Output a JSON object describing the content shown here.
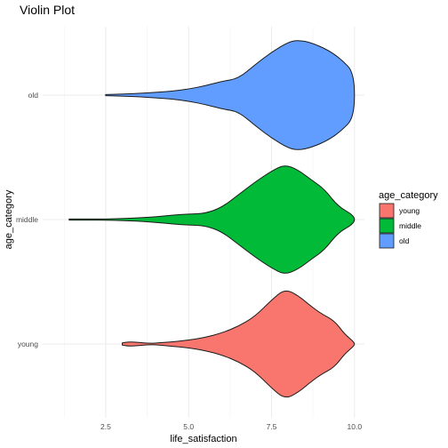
{
  "chart_data": {
    "type": "violin",
    "title": "Violin Plot",
    "xlabel": "life_satisfaction",
    "ylabel": "age_category",
    "xlim": [
      0.6,
      10.3
    ],
    "x_ticks": [
      2.5,
      5.0,
      7.5,
      10.0
    ],
    "x_tick_labels": [
      "2.5",
      "5.0",
      "7.5",
      "10.0"
    ],
    "categories": [
      "young",
      "middle",
      "old"
    ],
    "legend": {
      "title": "age_category",
      "placement": "right",
      "entries": [
        "young",
        "middle",
        "old"
      ]
    },
    "grid": true,
    "series": [
      {
        "name": "young",
        "color": "#F8766D",
        "range": [
          3.0,
          10.0
        ],
        "density_profile": [
          [
            3.0,
            0.02
          ],
          [
            3.2,
            0.04
          ],
          [
            3.5,
            0.03
          ],
          [
            3.8,
            0.01
          ],
          [
            4.1,
            0.02
          ],
          [
            4.5,
            0.04
          ],
          [
            5.0,
            0.07
          ],
          [
            5.5,
            0.12
          ],
          [
            6.0,
            0.2
          ],
          [
            6.5,
            0.32
          ],
          [
            7.0,
            0.5
          ],
          [
            7.5,
            0.8
          ],
          [
            7.9,
            1.0
          ],
          [
            8.3,
            0.88
          ],
          [
            8.7,
            0.68
          ],
          [
            9.0,
            0.55
          ],
          [
            9.4,
            0.42
          ],
          [
            9.7,
            0.18
          ],
          [
            10.0,
            0.03
          ]
        ]
      },
      {
        "name": "middle",
        "color": "#00BA38",
        "range": [
          1.4,
          10.0
        ],
        "density_profile": [
          [
            1.4,
            0.01
          ],
          [
            2.0,
            0.01
          ],
          [
            2.5,
            0.01
          ],
          [
            3.0,
            0.02
          ],
          [
            3.5,
            0.03
          ],
          [
            4.0,
            0.05
          ],
          [
            4.5,
            0.08
          ],
          [
            5.0,
            0.1
          ],
          [
            5.5,
            0.11
          ],
          [
            6.0,
            0.22
          ],
          [
            6.5,
            0.45
          ],
          [
            7.0,
            0.68
          ],
          [
            7.5,
            0.88
          ],
          [
            7.9,
            1.0
          ],
          [
            8.3,
            0.9
          ],
          [
            8.7,
            0.72
          ],
          [
            9.1,
            0.55
          ],
          [
            9.5,
            0.24
          ],
          [
            10.0,
            0.07
          ]
        ]
      },
      {
        "name": "old",
        "color": "#619CFF",
        "range": [
          2.5,
          10.0
        ],
        "density_profile": [
          [
            2.5,
            0.01
          ],
          [
            3.0,
            0.02
          ],
          [
            3.5,
            0.03
          ],
          [
            4.0,
            0.05
          ],
          [
            4.5,
            0.07
          ],
          [
            5.0,
            0.11
          ],
          [
            5.5,
            0.17
          ],
          [
            6.0,
            0.25
          ],
          [
            6.5,
            0.3
          ],
          [
            7.0,
            0.55
          ],
          [
            7.5,
            0.78
          ],
          [
            8.0,
            0.96
          ],
          [
            8.3,
            1.0
          ],
          [
            8.7,
            0.95
          ],
          [
            9.2,
            0.82
          ],
          [
            9.6,
            0.65
          ],
          [
            10.0,
            0.4
          ]
        ]
      }
    ]
  }
}
